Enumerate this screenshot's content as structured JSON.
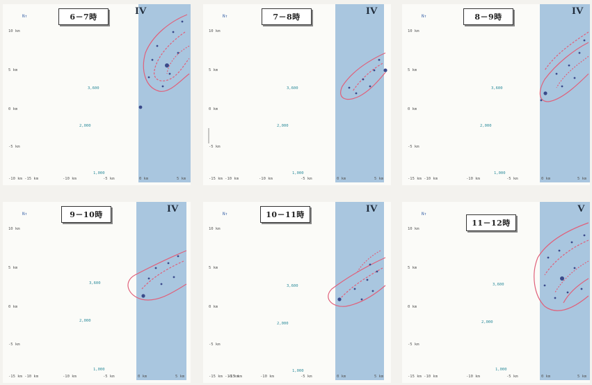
{
  "panels": [
    {
      "time": "6－7時",
      "zone": "IV",
      "north": "N↑",
      "ylabels": [
        "10 km",
        "5 km",
        "0 km",
        "-5 km",
        "-10 km -15 km"
      ],
      "xlabels": [
        "-10 km",
        "-5 km",
        "0 km",
        "5 km"
      ],
      "contours": [
        "3,600",
        "2,000",
        "1,000"
      ]
    },
    {
      "time": "7－8時",
      "zone": "IV",
      "north": "N↑",
      "ylabels": [
        "10 km",
        "5 km",
        "0 km",
        "-5 km",
        "-15 km -10 km"
      ],
      "xlabels": [
        "-10 km",
        "-5 km",
        "0 km",
        "5 km"
      ],
      "contours": [
        "3,600",
        "2,000",
        "1,000"
      ]
    },
    {
      "time": "8－9時",
      "zone": "IV",
      "north": "N↑",
      "ylabels": [
        "10 km",
        "5 km",
        "0 km",
        "-5 km",
        "-15 km -10 km"
      ],
      "xlabels": [
        "-10 km",
        "-5 km",
        "0 km",
        "5 km"
      ],
      "contours": [
        "3,600",
        "2,000",
        "1,000"
      ]
    },
    {
      "time": "9－10時",
      "zone": "IV",
      "north": "N↑",
      "ylabels": [
        "10 km",
        "5 km",
        "0 km",
        "-5 km",
        "-15 km -10 km"
      ],
      "xlabels": [
        "-10 km",
        "-5 km",
        "0 km",
        "5 km"
      ],
      "contours": [
        "3,600",
        "2,000",
        "1,000"
      ]
    },
    {
      "time": "10－11時",
      "zone": "IV",
      "north": "N↑",
      "ylabels": [
        "10 km",
        "5 km",
        "0 km",
        "-5 km",
        "-15 km -10 km"
      ],
      "xlabels": [
        "-15 km",
        "-10 km",
        "-5 km",
        "0 km",
        "5 km"
      ],
      "contours": [
        "3,600",
        "2,000",
        "1,000"
      ]
    },
    {
      "time": "11－12時",
      "zone": "V",
      "north": "N↑",
      "ylabels": [
        "10 km",
        "5 km",
        "0 km",
        "-5 km",
        "-15 km -10 km"
      ],
      "xlabels": [
        "-10 km",
        "-5 km",
        "0 km",
        "5 km"
      ],
      "contours": [
        "3,600",
        "2,000",
        "1,000"
      ]
    }
  ],
  "colors": {
    "sea": "#a9c6df",
    "track": "#e0607a",
    "track_light": "#f0a0b0",
    "marker": "#3a4a8a",
    "contour_label": "#2a8a9a"
  }
}
